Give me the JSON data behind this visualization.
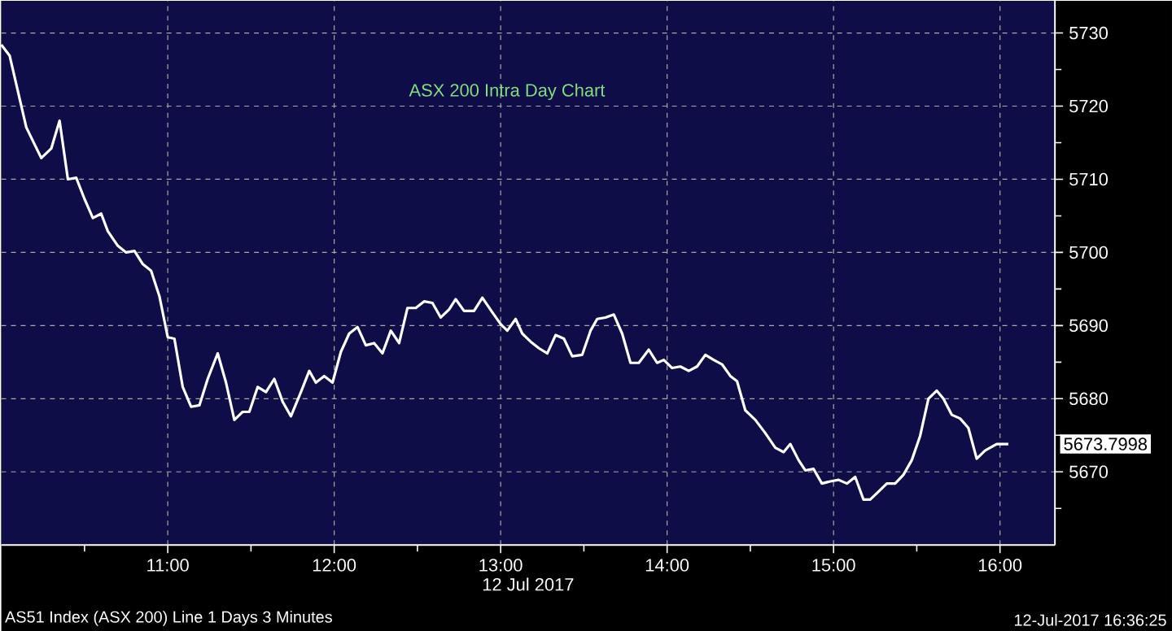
{
  "chart_data": {
    "type": "line",
    "title": "ASX 200 Intra Day Chart",
    "xlabel": "12 Jul 2017",
    "annotations": [
      "AS51 Index (ASX 200) Line 1 Days 3 Minutes",
      "12-Jul-2017 16:36:25",
      "5673.7998"
    ],
    "x": [
      10.0,
      10.05,
      10.15,
      10.24,
      10.3,
      10.35,
      10.4,
      10.45,
      10.5,
      10.55,
      10.6,
      10.64,
      10.7,
      10.75,
      10.8,
      10.85,
      10.9,
      10.95,
      11.0,
      11.04,
      11.09,
      11.14,
      11.19,
      11.24,
      11.3,
      11.35,
      11.4,
      11.45,
      11.49,
      11.54,
      11.59,
      11.64,
      11.69,
      11.74,
      11.8,
      11.85,
      11.89,
      11.94,
      11.99,
      12.04,
      12.09,
      12.14,
      12.19,
      12.24,
      12.29,
      12.34,
      12.39,
      12.44,
      12.49,
      12.54,
      12.59,
      12.64,
      12.69,
      12.73,
      12.78,
      12.84,
      12.89,
      12.95,
      13.0,
      13.04,
      13.09,
      13.13,
      13.18,
      13.23,
      13.28,
      13.33,
      13.38,
      13.43,
      13.49,
      13.54,
      13.58,
      13.63,
      13.68,
      13.73,
      13.78,
      13.83,
      13.89,
      13.94,
      13.98,
      14.03,
      14.08,
      14.13,
      14.18,
      14.23,
      14.28,
      14.33,
      14.38,
      14.42,
      14.47,
      14.53,
      14.59,
      14.65,
      14.7,
      14.74,
      14.79,
      14.83,
      14.88,
      14.93,
      14.98,
      15.03,
      15.08,
      15.13,
      15.18,
      15.22,
      15.27,
      15.32,
      15.37,
      15.42,
      15.47,
      15.52,
      15.57,
      15.62,
      15.66,
      15.71,
      15.76,
      15.81,
      15.86,
      15.91,
      15.98,
      16.05
    ],
    "series": [
      {
        "color": "#ffffff",
        "values": [
          5728.4,
          5726.9,
          5717.1,
          5712.9,
          5714.2,
          5718.0,
          5710.0,
          5710.2,
          5707.3,
          5704.7,
          5705.3,
          5702.9,
          5700.9,
          5700.0,
          5700.2,
          5698.4,
          5697.5,
          5694.0,
          5688.4,
          5688.2,
          5681.6,
          5678.9,
          5679.1,
          5682.7,
          5686.2,
          5682.2,
          5677.1,
          5678.2,
          5678.2,
          5681.6,
          5680.9,
          5682.7,
          5679.6,
          5677.6,
          5680.9,
          5683.8,
          5682.2,
          5683.1,
          5682.2,
          5686.4,
          5688.9,
          5689.8,
          5687.3,
          5687.6,
          5686.2,
          5689.3,
          5687.6,
          5692.4,
          5692.4,
          5693.3,
          5693.1,
          5691.1,
          5692.2,
          5693.6,
          5692.0,
          5692.0,
          5693.8,
          5691.8,
          5690.2,
          5689.3,
          5690.9,
          5688.9,
          5687.8,
          5686.9,
          5686.2,
          5688.7,
          5688.2,
          5685.8,
          5686.0,
          5689.3,
          5690.9,
          5691.1,
          5691.5,
          5688.9,
          5684.9,
          5684.9,
          5686.7,
          5684.9,
          5685.3,
          5684.2,
          5684.4,
          5683.8,
          5684.4,
          5686.0,
          5685.3,
          5684.7,
          5683.1,
          5682.4,
          5678.4,
          5677.1,
          5675.3,
          5673.3,
          5672.7,
          5673.8,
          5671.6,
          5670.2,
          5670.4,
          5668.4,
          5668.7,
          5668.9,
          5668.4,
          5669.3,
          5666.2,
          5666.2,
          5667.3,
          5668.4,
          5668.4,
          5669.6,
          5671.6,
          5674.9,
          5680.0,
          5681.1,
          5680.0,
          5677.8,
          5677.3,
          5676.0,
          5671.8,
          5672.9,
          5673.8,
          5673.8
        ]
      }
    ],
    "xlim": [
      10.0,
      16.33
    ],
    "ylim": [
      5660,
      5734.4
    ],
    "xticks": [
      {
        "value": 10.5,
        "label": null
      },
      {
        "value": 11,
        "label": "11:00"
      },
      {
        "value": 11.5,
        "label": null
      },
      {
        "value": 12,
        "label": "12:00"
      },
      {
        "value": 12.5,
        "label": null
      },
      {
        "value": 13,
        "label": "13:00"
      },
      {
        "value": 13.5,
        "label": null
      },
      {
        "value": 14,
        "label": "14:00"
      },
      {
        "value": 14.5,
        "label": null
      },
      {
        "value": 15,
        "label": "15:00"
      },
      {
        "value": 15.5,
        "label": null
      },
      {
        "value": 16,
        "label": "16:00"
      }
    ],
    "yticks": [
      {
        "value": 5665,
        "label": null
      },
      5670,
      {
        "value": 5675,
        "label": null
      },
      5680,
      {
        "value": 5685,
        "label": null
      },
      5690,
      {
        "value": 5695,
        "label": null
      },
      5700,
      {
        "value": 5705,
        "label": null
      },
      5710,
      {
        "value": 5715,
        "label": null
      },
      5720,
      {
        "value": 5725,
        "label": null
      },
      5730
    ],
    "grid": true,
    "marker": "none",
    "line_style": "solid"
  }
}
